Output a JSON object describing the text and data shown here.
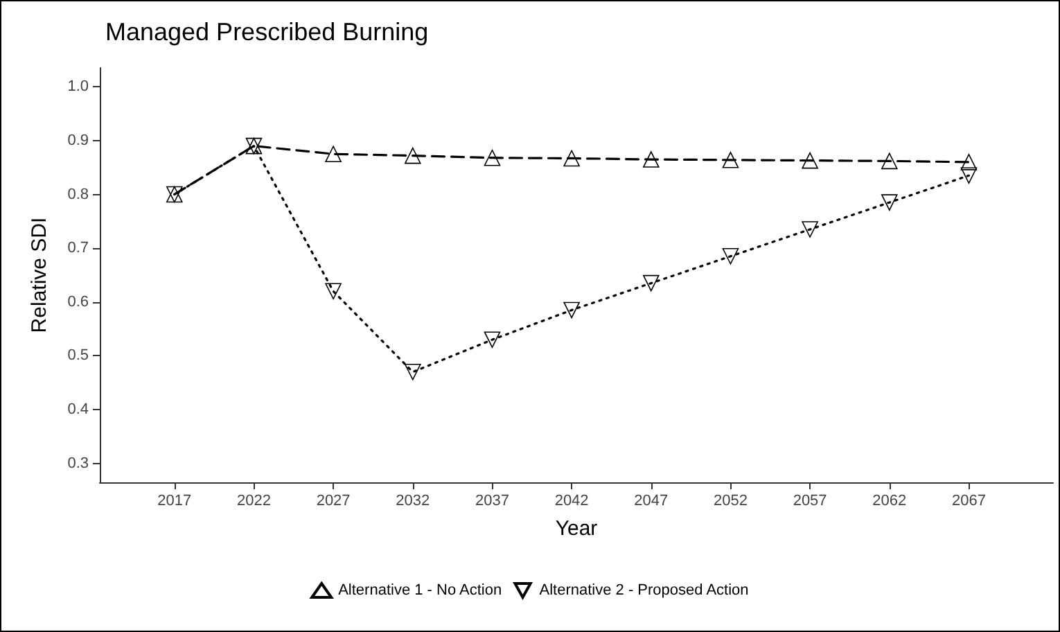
{
  "chart_data": {
    "type": "line",
    "title": "Managed Prescribed Burning",
    "xlabel": "Year",
    "ylabel": "Relative SDI",
    "x": [
      2017,
      2022,
      2027,
      2032,
      2037,
      2042,
      2047,
      2052,
      2057,
      2062,
      2067
    ],
    "series": [
      {
        "name": "Alternative 1 - No Action",
        "color": "#000000",
        "marker": "triangle",
        "line_style": "dashed",
        "values": [
          0.8,
          0.89,
          0.875,
          0.872,
          0.868,
          0.867,
          0.865,
          0.864,
          0.863,
          0.862,
          0.86
        ]
      },
      {
        "name": "Alternative 2 - Proposed Action",
        "color": "#000000",
        "marker": "triangle-down",
        "line_style": "dotted",
        "values": [
          0.8,
          0.89,
          0.62,
          0.47,
          0.53,
          0.585,
          0.635,
          0.685,
          0.735,
          0.785,
          0.835
        ]
      }
    ],
    "xlim": [
      2012.3,
      2072.3
    ],
    "xticks": [
      2017,
      2022,
      2027,
      2032,
      2037,
      2042,
      2047,
      2052,
      2057,
      2062,
      2067
    ],
    "ylim": [
      0.265,
      1.035
    ],
    "yticks": [
      {
        "value": 0.3,
        "label": "0.3"
      },
      {
        "value": 0.4,
        "label": "0.4"
      },
      {
        "value": 0.5,
        "label": "0.5"
      },
      {
        "value": 0.6,
        "label": "0.6"
      },
      {
        "value": 0.7,
        "label": "0.7"
      },
      {
        "value": 0.8,
        "label": "0.8"
      },
      {
        "value": 0.9,
        "label": "0.9"
      },
      {
        "value": 1.0,
        "label": "1.0"
      }
    ],
    "grid": false,
    "legend": "bottom"
  }
}
